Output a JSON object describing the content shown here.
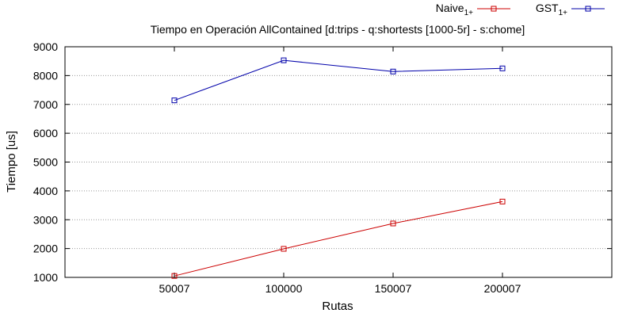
{
  "chart_data": {
    "type": "line",
    "title": "Tiempo en Operación AllContained [d:trips - q:shortests [1000-5r] - s:chome]",
    "xlabel": "Rutas",
    "ylabel": "Tiempo [us]",
    "categories": [
      "50007",
      "100000",
      "150007",
      "200007"
    ],
    "yticks": [
      1000,
      2000,
      3000,
      4000,
      5000,
      6000,
      7000,
      8000,
      9000
    ],
    "ylim": [
      1000,
      9000
    ],
    "xlim": [
      0,
      250000
    ],
    "grid": "horizontal dotted",
    "legend_position": "top-right",
    "series": [
      {
        "name": "Naive",
        "name_sub": "1+",
        "color": "#cc0000",
        "marker": "open-square",
        "x": [
          50007,
          100000,
          150007,
          200007
        ],
        "values": [
          1050,
          1990,
          2870,
          3630
        ]
      },
      {
        "name": "GST",
        "name_sub": "1+",
        "color": "#0000aa",
        "marker": "open-square",
        "x": [
          50007,
          100000,
          150007,
          200007
        ],
        "values": [
          7140,
          8530,
          8140,
          8250
        ]
      }
    ]
  }
}
